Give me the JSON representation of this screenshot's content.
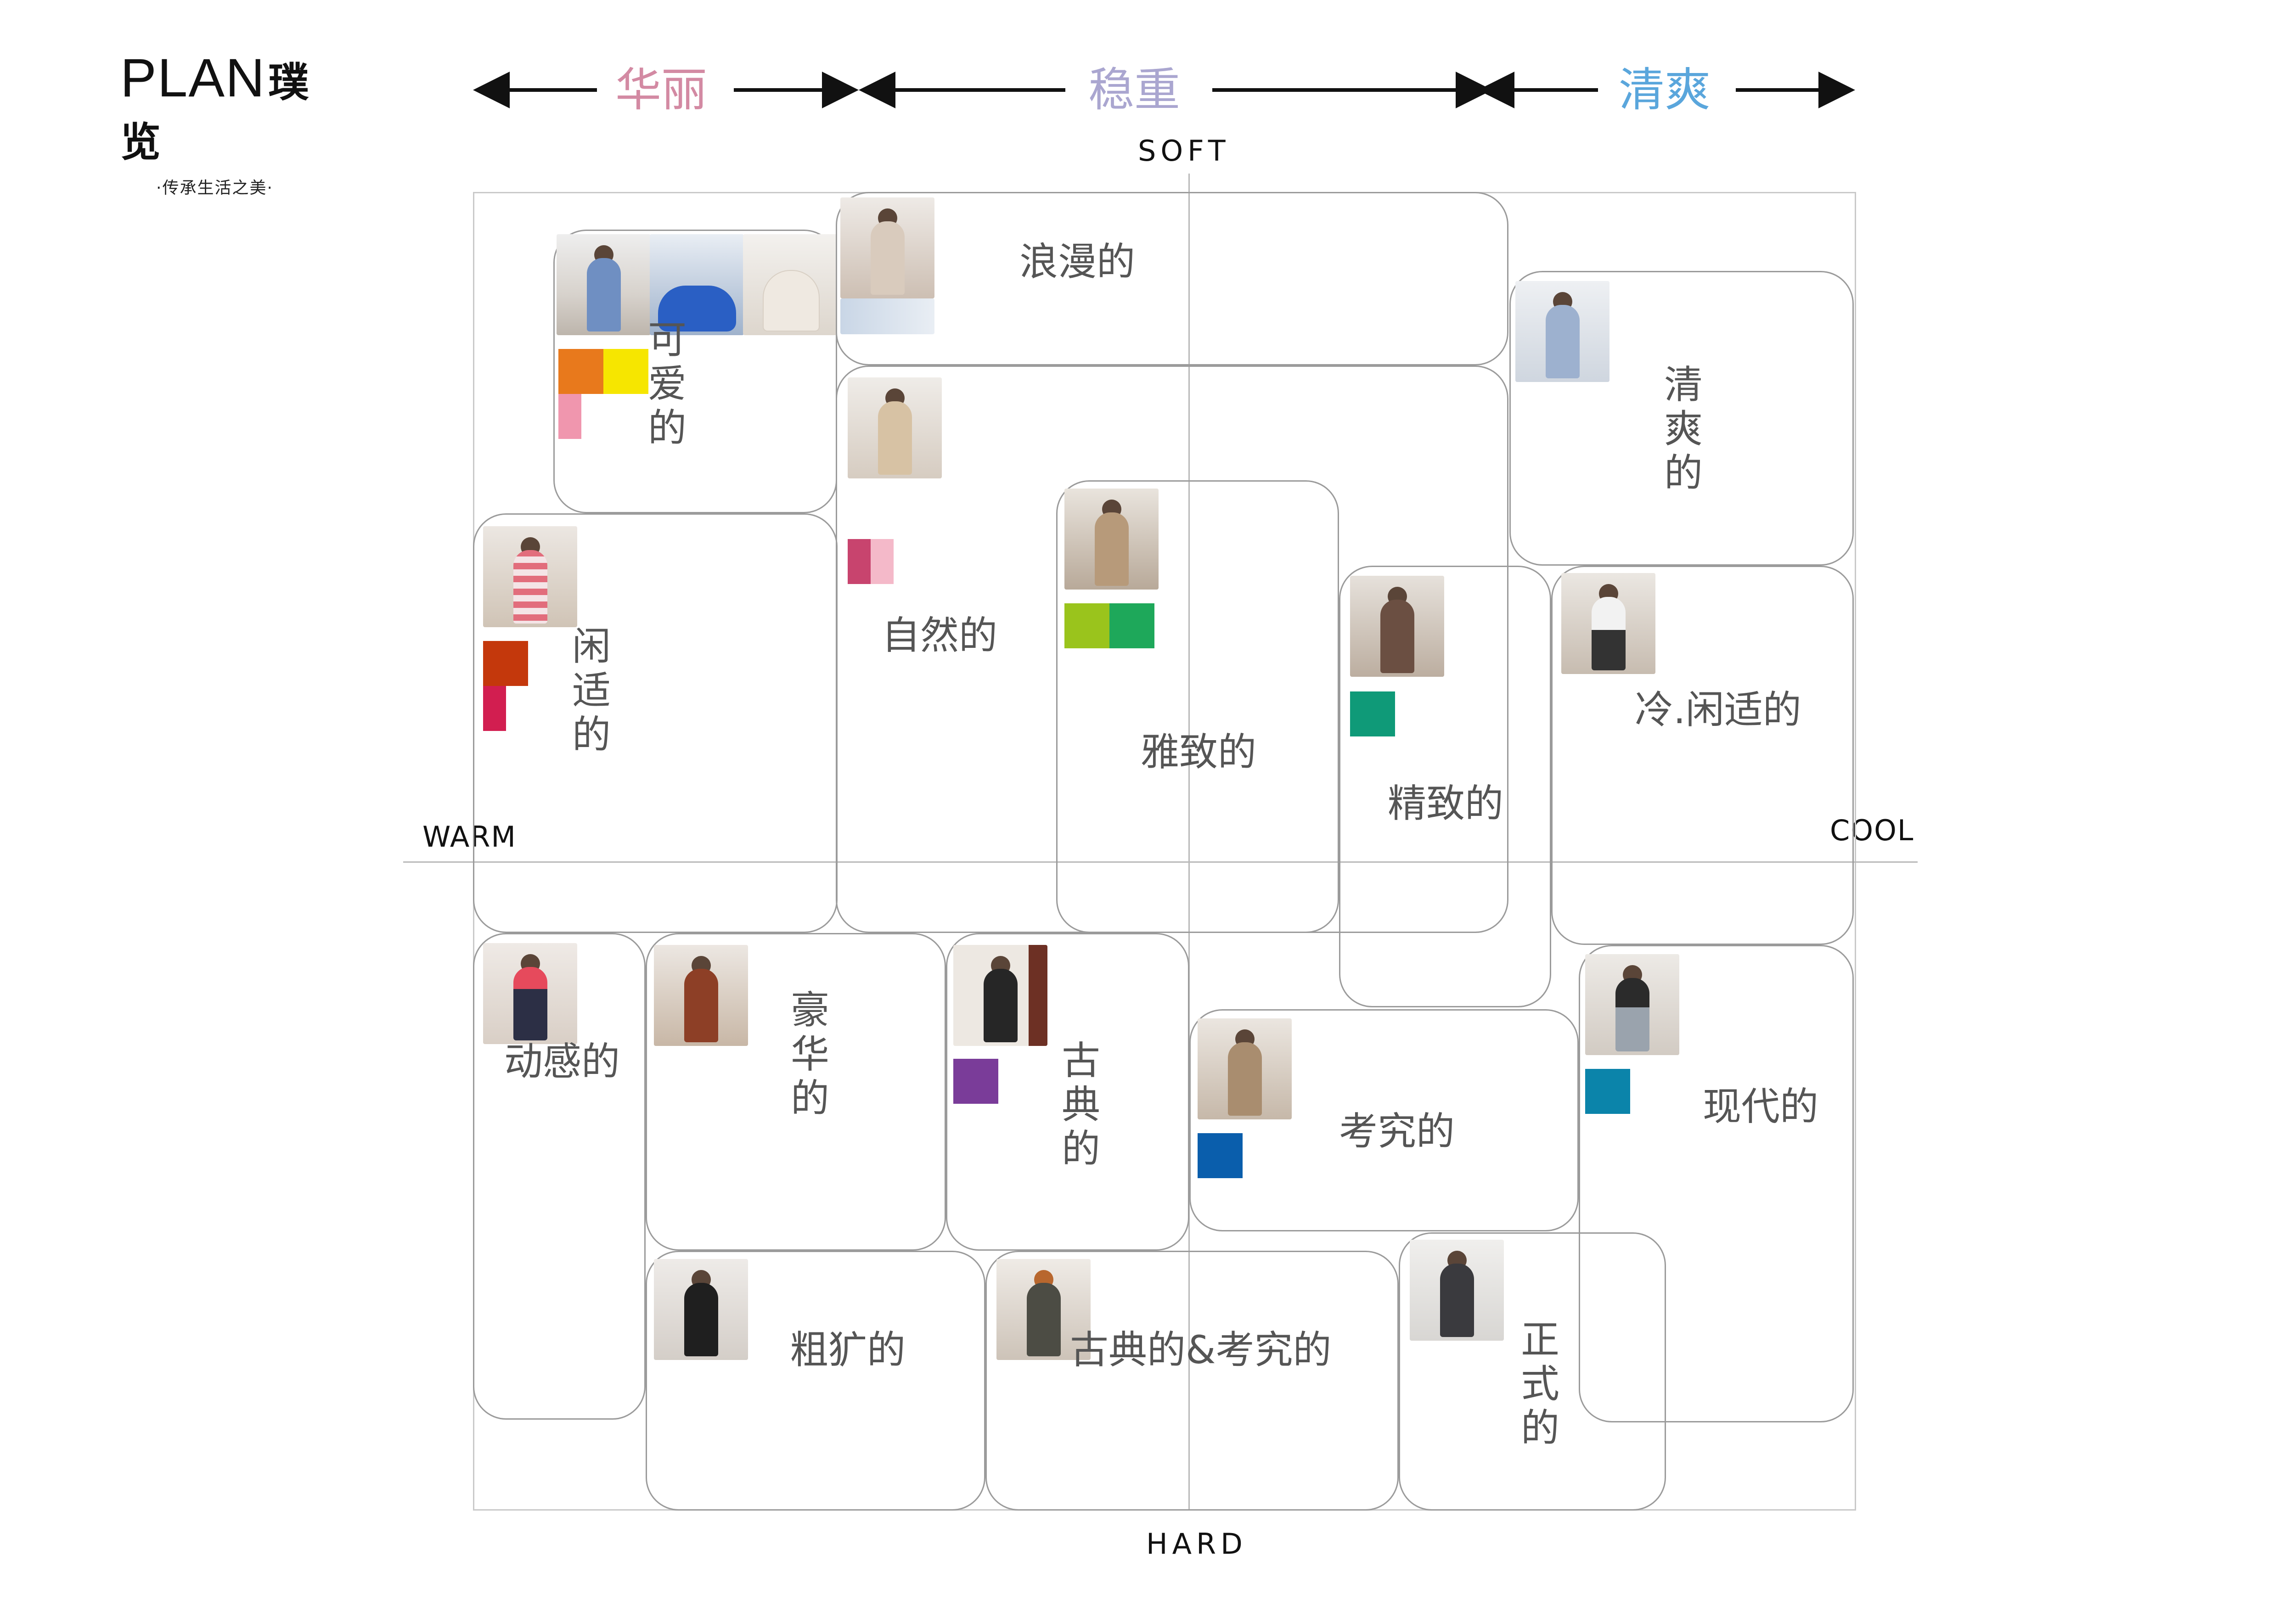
{
  "logo": {
    "brand": "PLAN",
    "brand_cn": "璞览",
    "slogan": "·传承生活之美·"
  },
  "band": {
    "left": "华丽",
    "middle": "稳重",
    "right": "清爽"
  },
  "band_colors": {
    "left": "#d38aa3",
    "middle": "#aaa6d0",
    "right": "#5aa6dc"
  },
  "axes": {
    "top": "SOFT",
    "bottom": "HARD",
    "left": "WARM",
    "right": "COOL"
  },
  "groups": {
    "kawaii": "可爱的",
    "romantic": "浪漫的",
    "clear": "清爽的",
    "leisure": "闲适的",
    "natural": "自然的",
    "elegant": "雅致的",
    "refined": "精致的",
    "cool_casual": "冷.闲适的",
    "dynamic": "动感的",
    "luxurious": "豪华的",
    "classic": "古典的",
    "modern": "现代的",
    "chic": "考究的",
    "wild": "粗犷的",
    "classic_chic": "古典的&考究的",
    "formal": "正式的"
  },
  "swatches": {
    "kawaii": [
      "#e8791c",
      "#f6e600",
      "#f096ae"
    ],
    "natural": [
      "#c8446e",
      "#f4b9c9"
    ],
    "elegant": [
      "#9ac41c",
      "#1ea85a"
    ],
    "leisure": [
      "#c4380c",
      "#d21e50"
    ],
    "refined": [
      "#0f9a78"
    ],
    "classic": [
      "#7a3c99"
    ],
    "modern": [
      "#0b84aa"
    ],
    "chic": [
      "#0a5eac"
    ]
  }
}
